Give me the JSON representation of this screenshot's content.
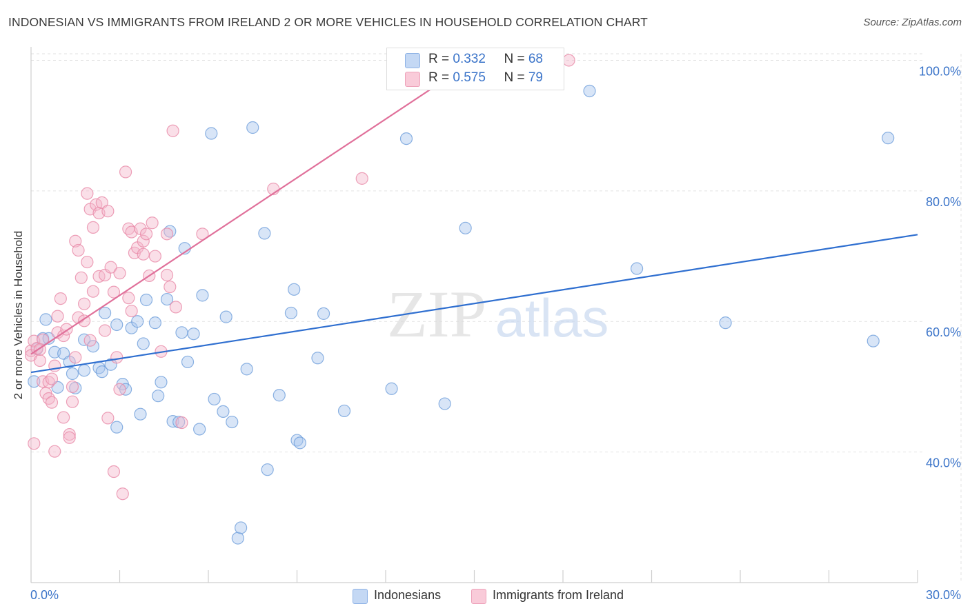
{
  "title": "INDONESIAN VS IMMIGRANTS FROM IRELAND 2 OR MORE VEHICLES IN HOUSEHOLD CORRELATION CHART",
  "source": "Source: ZipAtlas.com",
  "watermark": {
    "zip": "ZIP",
    "atlas": "atlas"
  },
  "colors": {
    "blue_fill": "#a9c6ee",
    "blue_stroke": "#6f9fdb",
    "blue_line": "#2f6fd0",
    "pink_fill": "#f5b9cb",
    "pink_stroke": "#e98aa8",
    "pink_line": "#e0709a",
    "axis_text": "#3b74c9",
    "grid": "#e2e2e2"
  },
  "legend": {
    "rows": [
      {
        "r_label": "R = ",
        "r_value": "0.332",
        "n_label": "N = ",
        "n_value": "68"
      },
      {
        "r_label": "R = ",
        "r_value": "0.575",
        "n_label": "N = ",
        "n_value": "79"
      }
    ],
    "bottom": [
      "Indonesians",
      "Immigrants from Ireland"
    ]
  },
  "chart_data": {
    "type": "scatter",
    "title": "INDONESIAN VS IMMIGRANTS FROM IRELAND 2 OR MORE VEHICLES IN HOUSEHOLD CORRELATION CHART",
    "xlabel": "",
    "ylabel": "2 or more Vehicles in Household",
    "xlim": [
      0,
      30
    ],
    "ylim": [
      20,
      101
    ],
    "x_tick_labels": [
      "0.0%",
      "30.0%"
    ],
    "y_ticks": [
      40,
      60,
      80,
      100
    ],
    "y_tick_labels": [
      "40.0%",
      "60.0%",
      "80.0%",
      "100.0%"
    ],
    "grid": true,
    "legend_position": "top-center",
    "series": [
      {
        "name": "Indonesians",
        "R": 0.332,
        "N": 68,
        "trend": {
          "x": [
            0,
            30
          ],
          "y": [
            52.2,
            73.3
          ]
        },
        "points": [
          [
            0.1,
            50.8
          ],
          [
            0.2,
            55.8
          ],
          [
            0.4,
            57.4
          ],
          [
            0.5,
            60.3
          ],
          [
            0.6,
            57.4
          ],
          [
            0.8,
            55.3
          ],
          [
            0.9,
            49.9
          ],
          [
            1.1,
            55.1
          ],
          [
            1.3,
            53.8
          ],
          [
            1.4,
            52.0
          ],
          [
            1.5,
            49.8
          ],
          [
            1.8,
            57.2
          ],
          [
            1.8,
            52.5
          ],
          [
            2.1,
            56.2
          ],
          [
            2.3,
            52.9
          ],
          [
            2.4,
            52.3
          ],
          [
            2.5,
            61.3
          ],
          [
            2.7,
            53.4
          ],
          [
            2.9,
            59.5
          ],
          [
            2.9,
            43.8
          ],
          [
            3.1,
            50.4
          ],
          [
            3.2,
            49.6
          ],
          [
            3.4,
            59.0
          ],
          [
            3.6,
            60.0
          ],
          [
            3.7,
            45.8
          ],
          [
            3.8,
            56.6
          ],
          [
            3.9,
            63.3
          ],
          [
            4.2,
            59.8
          ],
          [
            4.3,
            48.6
          ],
          [
            4.4,
            50.7
          ],
          [
            4.6,
            63.4
          ],
          [
            4.7,
            73.8
          ],
          [
            4.8,
            44.7
          ],
          [
            5.0,
            44.6
          ],
          [
            5.1,
            58.3
          ],
          [
            5.2,
            71.2
          ],
          [
            5.3,
            53.8
          ],
          [
            5.5,
            58.1
          ],
          [
            5.7,
            43.5
          ],
          [
            5.8,
            64.0
          ],
          [
            6.1,
            88.8
          ],
          [
            6.2,
            48.1
          ],
          [
            6.5,
            46.2
          ],
          [
            6.6,
            60.7
          ],
          [
            6.8,
            44.6
          ],
          [
            7.0,
            26.8
          ],
          [
            7.1,
            28.4
          ],
          [
            7.3,
            52.7
          ],
          [
            7.5,
            89.7
          ],
          [
            7.9,
            73.5
          ],
          [
            8.0,
            37.3
          ],
          [
            8.4,
            48.7
          ],
          [
            8.8,
            61.3
          ],
          [
            8.9,
            64.9
          ],
          [
            9.0,
            41.8
          ],
          [
            9.1,
            41.4
          ],
          [
            9.7,
            54.4
          ],
          [
            9.9,
            61.2
          ],
          [
            10.6,
            46.3
          ],
          [
            12.2,
            49.7
          ],
          [
            12.7,
            88.0
          ],
          [
            14.0,
            47.4
          ],
          [
            14.7,
            74.3
          ],
          [
            18.9,
            95.3
          ],
          [
            20.5,
            68.1
          ],
          [
            23.5,
            59.8
          ],
          [
            28.5,
            57.0
          ],
          [
            29.0,
            88.1
          ]
        ]
      },
      {
        "name": "Immigrants from Ireland",
        "R": 0.575,
        "N": 79,
        "trend": {
          "x": [
            0,
            15
          ],
          "y": [
            55.0,
            100.0
          ]
        },
        "points": [
          [
            0.0,
            55.5
          ],
          [
            0.0,
            54.8
          ],
          [
            0.1,
            57.0
          ],
          [
            0.1,
            41.3
          ],
          [
            0.2,
            55.9
          ],
          [
            0.3,
            54.0
          ],
          [
            0.4,
            50.8
          ],
          [
            0.4,
            57.2
          ],
          [
            0.5,
            49.0
          ],
          [
            0.6,
            48.2
          ],
          [
            0.6,
            50.7
          ],
          [
            0.7,
            47.6
          ],
          [
            0.8,
            53.2
          ],
          [
            0.8,
            40.1
          ],
          [
            0.9,
            58.3
          ],
          [
            0.9,
            60.8
          ],
          [
            1.0,
            63.5
          ],
          [
            1.1,
            57.8
          ],
          [
            1.1,
            45.3
          ],
          [
            1.2,
            58.8
          ],
          [
            1.3,
            42.7
          ],
          [
            1.3,
            42.2
          ],
          [
            1.4,
            50.0
          ],
          [
            1.4,
            47.7
          ],
          [
            1.5,
            54.5
          ],
          [
            1.5,
            72.3
          ],
          [
            1.6,
            60.6
          ],
          [
            1.6,
            70.9
          ],
          [
            1.7,
            66.7
          ],
          [
            1.8,
            62.7
          ],
          [
            1.8,
            60.1
          ],
          [
            1.9,
            79.6
          ],
          [
            1.9,
            69.1
          ],
          [
            2.0,
            77.2
          ],
          [
            2.0,
            57.1
          ],
          [
            2.1,
            64.6
          ],
          [
            2.1,
            74.4
          ],
          [
            2.2,
            77.9
          ],
          [
            2.3,
            76.6
          ],
          [
            2.3,
            66.9
          ],
          [
            2.4,
            78.2
          ],
          [
            2.5,
            58.6
          ],
          [
            2.5,
            67.1
          ],
          [
            2.6,
            45.2
          ],
          [
            2.6,
            76.9
          ],
          [
            2.7,
            68.3
          ],
          [
            2.8,
            37.0
          ],
          [
            2.8,
            64.5
          ],
          [
            2.9,
            54.5
          ],
          [
            3.0,
            67.4
          ],
          [
            3.0,
            49.6
          ],
          [
            3.1,
            33.6
          ],
          [
            3.2,
            82.9
          ],
          [
            3.3,
            74.2
          ],
          [
            3.3,
            63.6
          ],
          [
            3.4,
            61.6
          ],
          [
            3.4,
            73.7
          ],
          [
            3.5,
            70.5
          ],
          [
            3.6,
            71.3
          ],
          [
            3.7,
            74.2
          ],
          [
            3.8,
            70.3
          ],
          [
            3.8,
            72.3
          ],
          [
            3.9,
            73.4
          ],
          [
            4.0,
            67.0
          ],
          [
            4.1,
            75.1
          ],
          [
            4.2,
            70.0
          ],
          [
            4.4,
            55.4
          ],
          [
            4.6,
            73.4
          ],
          [
            4.6,
            67.1
          ],
          [
            4.7,
            65.3
          ],
          [
            4.8,
            89.2
          ],
          [
            4.9,
            62.2
          ],
          [
            5.1,
            44.5
          ],
          [
            5.8,
            73.4
          ],
          [
            8.2,
            80.3
          ],
          [
            11.2,
            81.9
          ],
          [
            18.2,
            100.0
          ],
          [
            0.3,
            55.7
          ],
          [
            0.7,
            51.2
          ]
        ]
      }
    ]
  }
}
